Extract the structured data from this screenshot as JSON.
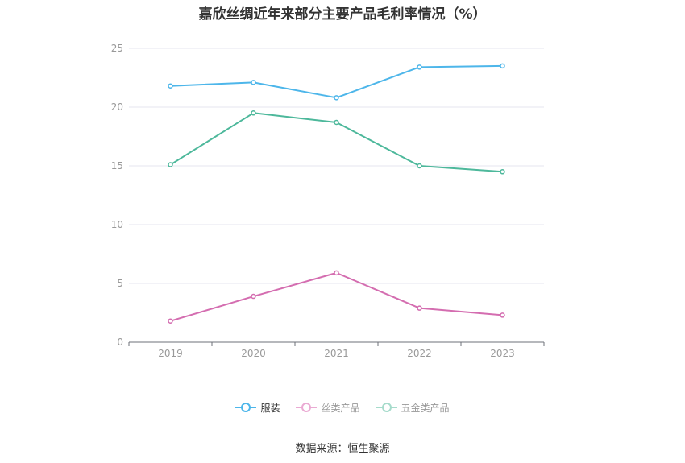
{
  "chart_data": {
    "type": "line",
    "title": "嘉欣丝绸近年来部分主要产品毛利率情况（%）",
    "categories": [
      "2019",
      "2020",
      "2021",
      "2022",
      "2023"
    ],
    "ylim": [
      0,
      25
    ],
    "yticks": [
      "0",
      "5",
      "10",
      "15",
      "20",
      "25"
    ],
    "grid": true,
    "legend_position": "bottom",
    "series": [
      {
        "name": "服装",
        "color": "#4db6ea",
        "legend_color": "#4db6ea",
        "values": [
          21.8,
          22.1,
          20.8,
          23.4,
          23.5
        ]
      },
      {
        "name": "丝类产品",
        "color": "#d46db0",
        "legend_color": "#eaaad3",
        "values": [
          1.8,
          3.9,
          5.9,
          2.9,
          2.3
        ]
      },
      {
        "name": "五金类产品",
        "color": "#4db89b",
        "legend_color": "#a6dbcb",
        "values": [
          15.1,
          19.5,
          18.7,
          15.0,
          14.5
        ]
      }
    ]
  },
  "source": "数据来源：恒生聚源"
}
